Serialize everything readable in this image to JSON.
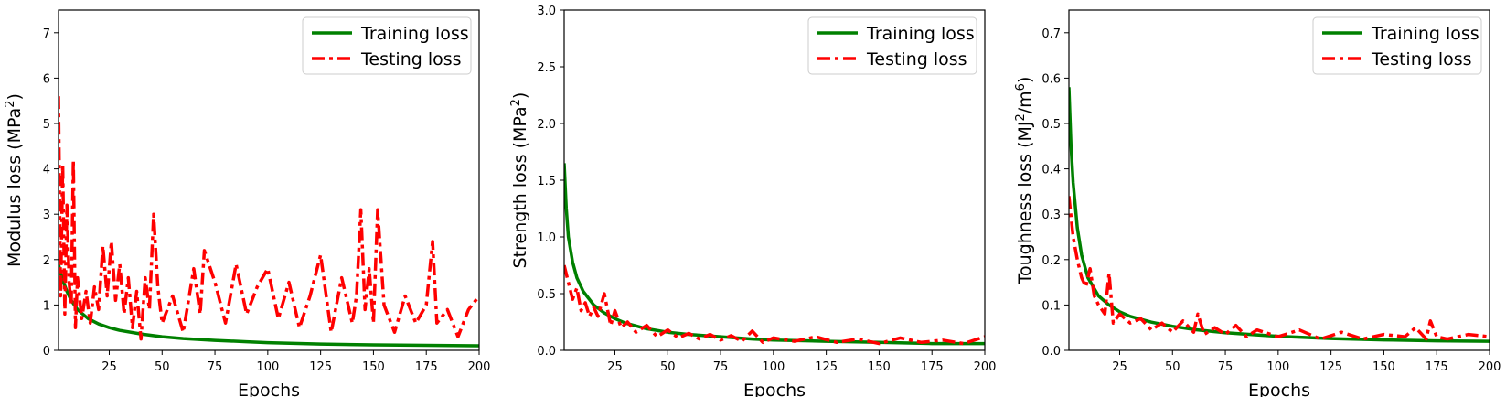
{
  "chart_data": [
    {
      "type": "line",
      "xlabel": "Epochs",
      "ylabel": "Modulus loss (MPa",
      "ylabel_sup": "2",
      "ylabel_suffix": ")",
      "xlim": [
        1,
        200
      ],
      "ylim": [
        0,
        7.5
      ],
      "xticks": [
        25,
        50,
        75,
        100,
        125,
        150,
        175,
        200
      ],
      "yticks": [
        0,
        1,
        2,
        3,
        4,
        5,
        6,
        7
      ],
      "ytick_labels": [
        "0",
        "1",
        "2",
        "3",
        "4",
        "5",
        "6",
        "7"
      ],
      "legend": "top-right",
      "series": [
        {
          "name": "Training loss",
          "color": "#008000",
          "style": "solid",
          "x": [
            1,
            2,
            3,
            5,
            7,
            10,
            15,
            20,
            25,
            30,
            40,
            50,
            60,
            75,
            90,
            100,
            125,
            150,
            175,
            200
          ],
          "y": [
            1.9,
            1.7,
            1.55,
            1.3,
            1.1,
            0.9,
            0.7,
            0.58,
            0.5,
            0.44,
            0.36,
            0.3,
            0.26,
            0.22,
            0.19,
            0.17,
            0.14,
            0.12,
            0.11,
            0.1
          ]
        },
        {
          "name": "Testing loss",
          "color": "#ff0000",
          "style": "dashdot",
          "x": [
            1,
            2,
            3,
            4,
            5,
            6,
            7,
            8,
            9,
            10,
            12,
            14,
            16,
            18,
            20,
            22,
            24,
            26,
            28,
            30,
            32,
            34,
            36,
            38,
            40,
            42,
            44,
            46,
            48,
            50,
            55,
            60,
            65,
            68,
            70,
            75,
            80,
            85,
            90,
            95,
            100,
            105,
            110,
            115,
            120,
            125,
            130,
            135,
            140,
            142,
            144,
            146,
            148,
            150,
            152,
            155,
            160,
            165,
            170,
            175,
            178,
            180,
            185,
            190,
            195,
            200
          ],
          "y": [
            5.6,
            1.2,
            4.1,
            0.8,
            3.2,
            1.5,
            1.0,
            4.2,
            0.5,
            1.6,
            0.7,
            1.3,
            0.6,
            1.4,
            0.9,
            2.3,
            1.2,
            2.4,
            1.1,
            1.9,
            0.8,
            1.6,
            0.5,
            1.3,
            0.25,
            1.6,
            0.9,
            3.0,
            1.4,
            0.6,
            1.2,
            0.4,
            1.8,
            0.8,
            2.2,
            1.5,
            0.6,
            1.9,
            0.8,
            1.4,
            1.8,
            0.7,
            1.5,
            0.5,
            1.2,
            2.1,
            0.4,
            1.6,
            0.6,
            1.2,
            3.1,
            0.9,
            1.8,
            0.6,
            3.1,
            1.0,
            0.4,
            1.2,
            0.6,
            1.0,
            2.4,
            0.6,
            0.9,
            0.3,
            0.9,
            1.2
          ]
        }
      ]
    },
    {
      "type": "line",
      "xlabel": "Epochs",
      "ylabel": "Strength loss (MPa",
      "ylabel_sup": "2",
      "ylabel_suffix": ")",
      "xlim": [
        1,
        200
      ],
      "ylim": [
        0,
        3.0
      ],
      "xticks": [
        25,
        50,
        75,
        100,
        125,
        150,
        175,
        200
      ],
      "yticks": [
        0,
        0.5,
        1.0,
        1.5,
        2.0,
        2.5,
        3.0
      ],
      "ytick_labels": [
        "0.0",
        "0.5",
        "1.0",
        "1.5",
        "2.0",
        "2.5",
        "3.0"
      ],
      "legend": "top-right",
      "series": [
        {
          "name": "Training loss",
          "color": "#008000",
          "style": "solid",
          "x": [
            1,
            2,
            3,
            5,
            7,
            10,
            15,
            20,
            25,
            30,
            40,
            50,
            60,
            75,
            90,
            100,
            125,
            150,
            175,
            200
          ],
          "y": [
            1.65,
            1.25,
            1.0,
            0.78,
            0.64,
            0.52,
            0.4,
            0.33,
            0.28,
            0.24,
            0.19,
            0.16,
            0.14,
            0.12,
            0.1,
            0.09,
            0.08,
            0.07,
            0.06,
            0.06
          ]
        },
        {
          "name": "Testing loss",
          "color": "#ff0000",
          "style": "dashdot",
          "x": [
            1,
            3,
            5,
            7,
            9,
            11,
            13,
            15,
            17,
            20,
            23,
            25,
            28,
            31,
            35,
            40,
            45,
            50,
            55,
            60,
            65,
            70,
            75,
            80,
            85,
            90,
            95,
            100,
            110,
            120,
            130,
            140,
            150,
            160,
            170,
            180,
            190,
            200
          ],
          "y": [
            0.75,
            0.6,
            0.45,
            0.55,
            0.35,
            0.42,
            0.3,
            0.38,
            0.3,
            0.5,
            0.22,
            0.35,
            0.2,
            0.25,
            0.16,
            0.22,
            0.12,
            0.18,
            0.11,
            0.15,
            0.1,
            0.14,
            0.09,
            0.13,
            0.08,
            0.17,
            0.07,
            0.11,
            0.08,
            0.12,
            0.07,
            0.1,
            0.06,
            0.11,
            0.07,
            0.09,
            0.06,
            0.12
          ]
        }
      ]
    },
    {
      "type": "line",
      "xlabel": "Epochs",
      "ylabel": "Toughness loss (MJ",
      "ylabel_sup": "2",
      "ylabel_mid": "/m",
      "ylabel_sup2": "6",
      "ylabel_suffix": ")",
      "xlim": [
        1,
        200
      ],
      "ylim": [
        0,
        0.75
      ],
      "xticks": [
        25,
        50,
        75,
        100,
        125,
        150,
        175,
        200
      ],
      "yticks": [
        0,
        0.1,
        0.2,
        0.3,
        0.4,
        0.5,
        0.6,
        0.7
      ],
      "ytick_labels": [
        "0.0",
        "0.1",
        "0.2",
        "0.3",
        "0.4",
        "0.5",
        "0.6",
        "0.7"
      ],
      "legend": "top-right",
      "series": [
        {
          "name": "Training loss",
          "color": "#008000",
          "style": "solid",
          "x": [
            1,
            2,
            3,
            5,
            7,
            10,
            15,
            20,
            25,
            30,
            40,
            50,
            60,
            75,
            90,
            100,
            125,
            150,
            175,
            200
          ],
          "y": [
            0.58,
            0.45,
            0.37,
            0.27,
            0.21,
            0.16,
            0.12,
            0.1,
            0.085,
            0.075,
            0.062,
            0.053,
            0.046,
            0.039,
            0.034,
            0.031,
            0.026,
            0.023,
            0.021,
            0.02
          ]
        },
        {
          "name": "Testing loss",
          "color": "#ff0000",
          "style": "dashdot",
          "x": [
            1,
            3,
            5,
            7,
            9,
            11,
            13,
            15,
            18,
            20,
            22,
            25,
            30,
            35,
            40,
            45,
            50,
            55,
            60,
            62,
            65,
            70,
            75,
            80,
            85,
            90,
            100,
            110,
            120,
            130,
            140,
            150,
            160,
            165,
            170,
            172,
            175,
            180,
            190,
            200
          ],
          "y": [
            0.34,
            0.25,
            0.2,
            0.16,
            0.14,
            0.18,
            0.12,
            0.1,
            0.08,
            0.17,
            0.06,
            0.08,
            0.06,
            0.07,
            0.045,
            0.06,
            0.04,
            0.065,
            0.04,
            0.08,
            0.035,
            0.05,
            0.035,
            0.055,
            0.03,
            0.045,
            0.03,
            0.045,
            0.025,
            0.04,
            0.025,
            0.035,
            0.03,
            0.05,
            0.025,
            0.065,
            0.03,
            0.025,
            0.035,
            0.03
          ]
        }
      ]
    }
  ]
}
